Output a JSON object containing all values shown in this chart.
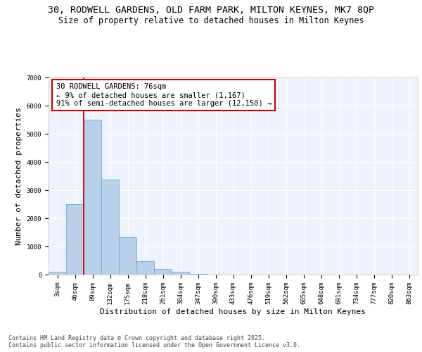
{
  "title_line1": "30, RODWELL GARDENS, OLD FARM PARK, MILTON KEYNES, MK7 8QP",
  "title_line2": "Size of property relative to detached houses in Milton Keynes",
  "xlabel": "Distribution of detached houses by size in Milton Keynes",
  "ylabel": "Number of detached properties",
  "categories": [
    "3sqm",
    "46sqm",
    "89sqm",
    "132sqm",
    "175sqm",
    "218sqm",
    "261sqm",
    "304sqm",
    "347sqm",
    "390sqm",
    "433sqm",
    "476sqm",
    "519sqm",
    "562sqm",
    "605sqm",
    "648sqm",
    "691sqm",
    "734sqm",
    "777sqm",
    "820sqm",
    "863sqm"
  ],
  "values": [
    100,
    2500,
    5500,
    3380,
    1320,
    470,
    200,
    90,
    30,
    5,
    2,
    1,
    0,
    0,
    0,
    0,
    0,
    0,
    0,
    0,
    0
  ],
  "bar_color": "#b8d0ea",
  "bar_edge_color": "#6baed6",
  "vline_color": "#cc0000",
  "vline_x_index": 1.5,
  "annotation_text": "30 RODWELL GARDENS: 76sqm\n← 9% of detached houses are smaller (1,167)\n91% of semi-detached houses are larger (12,150) →",
  "annotation_box_color": "#cc0000",
  "background_color": "#eef2fb",
  "grid_color": "#ffffff",
  "ylim": [
    0,
    7000
  ],
  "yticks": [
    0,
    1000,
    2000,
    3000,
    4000,
    5000,
    6000,
    7000
  ],
  "footnote": "Contains HM Land Registry data © Crown copyright and database right 2025.\nContains public sector information licensed under the Open Government Licence v3.0.",
  "title_fontsize": 9.5,
  "subtitle_fontsize": 8.5,
  "axis_label_fontsize": 8,
  "tick_fontsize": 6.5,
  "annotation_fontsize": 7.5,
  "footnote_fontsize": 6
}
